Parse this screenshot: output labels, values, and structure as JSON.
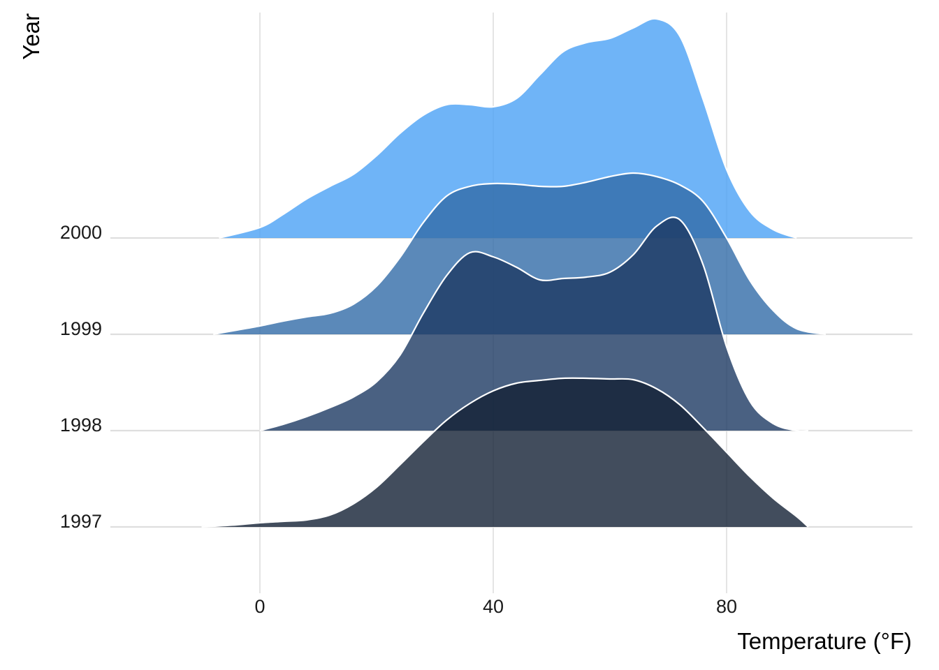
{
  "chart_data": {
    "type": "ridgeline",
    "xlabel": "Temperature (°F)",
    "ylabel": "Year",
    "xlim": [
      -24,
      112
    ],
    "x_ticks": [
      0,
      40,
      80
    ],
    "grid": true,
    "legend": "none",
    "categories": [
      "1997",
      "1998",
      "1999",
      "2000"
    ],
    "series": [
      {
        "name": "1997",
        "color": "#132035",
        "fill_opacity": 0.8,
        "points": [
          [
            -10,
            0.0
          ],
          [
            -4,
            0.03
          ],
          [
            0,
            0.06
          ],
          [
            4,
            0.08
          ],
          [
            8,
            0.1
          ],
          [
            12,
            0.17
          ],
          [
            16,
            0.33
          ],
          [
            20,
            0.57
          ],
          [
            24,
            0.89
          ],
          [
            28,
            1.22
          ],
          [
            32,
            1.53
          ],
          [
            36,
            1.77
          ],
          [
            40,
            1.95
          ],
          [
            44,
            2.06
          ],
          [
            48,
            2.1
          ],
          [
            52,
            2.13
          ],
          [
            56,
            2.13
          ],
          [
            60,
            2.12
          ],
          [
            64,
            2.11
          ],
          [
            68,
            1.98
          ],
          [
            72,
            1.75
          ],
          [
            76,
            1.42
          ],
          [
            80,
            1.07
          ],
          [
            84,
            0.72
          ],
          [
            88,
            0.41
          ],
          [
            92,
            0.15
          ],
          [
            94,
            0.0
          ]
        ]
      },
      {
        "name": "1998",
        "color": "#1D3A63",
        "fill_opacity": 0.8,
        "points": [
          [
            0,
            0.0
          ],
          [
            4,
            0.09
          ],
          [
            8,
            0.2
          ],
          [
            12,
            0.33
          ],
          [
            16,
            0.48
          ],
          [
            20,
            0.7
          ],
          [
            24,
            1.08
          ],
          [
            28,
            1.68
          ],
          [
            32,
            2.22
          ],
          [
            36,
            2.55
          ],
          [
            40,
            2.49
          ],
          [
            44,
            2.34
          ],
          [
            48,
            2.16
          ],
          [
            52,
            2.18
          ],
          [
            56,
            2.2
          ],
          [
            60,
            2.27
          ],
          [
            64,
            2.52
          ],
          [
            68,
            2.93
          ],
          [
            72,
            3.02
          ],
          [
            76,
            2.37
          ],
          [
            80,
            1.2
          ],
          [
            84,
            0.42
          ],
          [
            88,
            0.1
          ],
          [
            92,
            0.0
          ],
          [
            94,
            0.0
          ]
        ]
      },
      {
        "name": "1999",
        "color": "#326BA8",
        "fill_opacity": 0.8,
        "points": [
          [
            -8,
            0.0
          ],
          [
            -4,
            0.06
          ],
          [
            0,
            0.12
          ],
          [
            4,
            0.19
          ],
          [
            8,
            0.25
          ],
          [
            12,
            0.3
          ],
          [
            16,
            0.43
          ],
          [
            20,
            0.69
          ],
          [
            24,
            1.1
          ],
          [
            28,
            1.6
          ],
          [
            32,
            1.98
          ],
          [
            36,
            2.12
          ],
          [
            40,
            2.16
          ],
          [
            44,
            2.15
          ],
          [
            48,
            2.12
          ],
          [
            52,
            2.12
          ],
          [
            56,
            2.18
          ],
          [
            60,
            2.26
          ],
          [
            64,
            2.31
          ],
          [
            68,
            2.26
          ],
          [
            72,
            2.14
          ],
          [
            76,
            1.9
          ],
          [
            80,
            1.38
          ],
          [
            84,
            0.77
          ],
          [
            88,
            0.34
          ],
          [
            92,
            0.08
          ],
          [
            97,
            0.0
          ]
        ]
      },
      {
        "name": "2000",
        "color": "#4BA1F5",
        "fill_opacity": 0.8,
        "points": [
          [
            -7,
            0.0
          ],
          [
            0,
            0.15
          ],
          [
            4,
            0.34
          ],
          [
            8,
            0.56
          ],
          [
            12,
            0.74
          ],
          [
            16,
            0.91
          ],
          [
            20,
            1.18
          ],
          [
            24,
            1.5
          ],
          [
            28,
            1.76
          ],
          [
            32,
            1.91
          ],
          [
            36,
            1.91
          ],
          [
            40,
            1.88
          ],
          [
            44,
            2.0
          ],
          [
            48,
            2.34
          ],
          [
            52,
            2.67
          ],
          [
            56,
            2.8
          ],
          [
            60,
            2.86
          ],
          [
            64,
            3.01
          ],
          [
            68,
            3.14
          ],
          [
            72,
            2.89
          ],
          [
            76,
            1.98
          ],
          [
            80,
            0.98
          ],
          [
            84,
            0.38
          ],
          [
            88,
            0.12
          ],
          [
            92,
            0.0
          ]
        ]
      }
    ]
  }
}
